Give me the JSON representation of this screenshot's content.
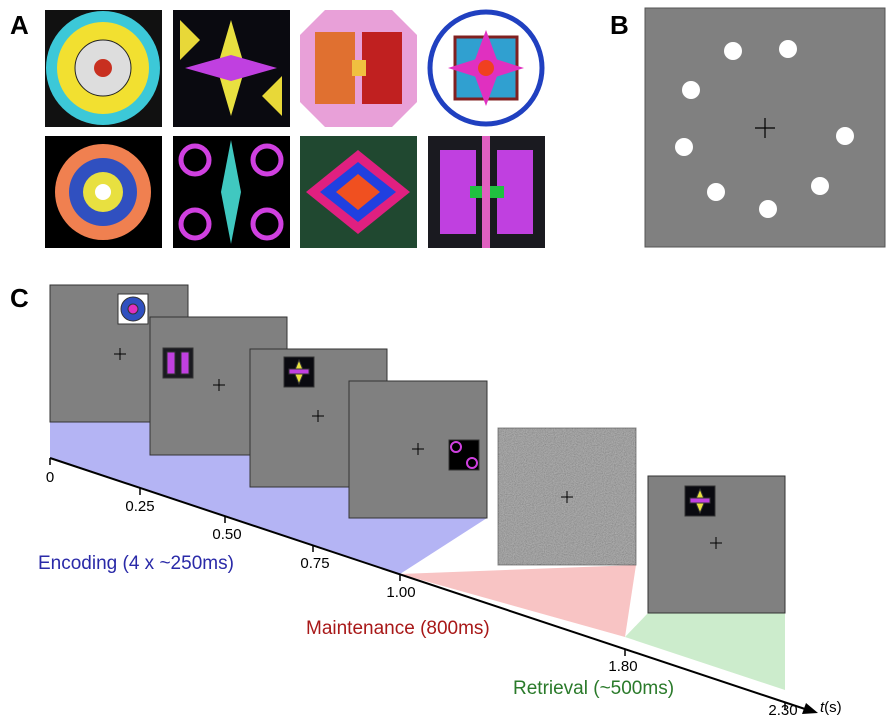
{
  "panels": {
    "a": "A",
    "b": "B",
    "c": "C"
  },
  "timeline": {
    "ticks": [
      "0",
      "0.25",
      "0.50",
      "0.75",
      "1.00",
      "1.80",
      "2.30"
    ],
    "axis_label": "t",
    "axis_unit": "(s)"
  },
  "phases": {
    "encoding": "Encoding (4 x ~250ms)",
    "maintenance": "Maintenance (800ms)",
    "retrieval": "Retrieval (~500ms)"
  }
}
